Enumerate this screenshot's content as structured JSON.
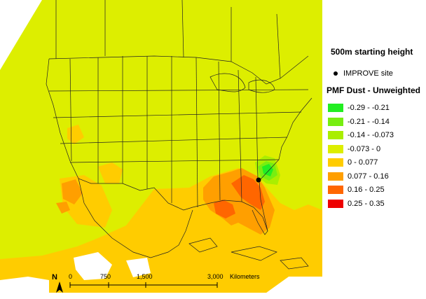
{
  "title": "500m starting height",
  "site_legend_label": "IMPROVE site",
  "layer_title": "PMF Dust - Unweighted",
  "classes": [
    {
      "label": "-0.29 - -0.21",
      "color": "#22ee22"
    },
    {
      "label": "-0.21 - -0.14",
      "color": "#77ee11"
    },
    {
      "label": "-0.14 - -0.073",
      "color": "#aaee00"
    },
    {
      "label": "-0.073 - 0",
      "color": "#ddee00"
    },
    {
      "label": "0 - 0.077",
      "color": "#ffcc00"
    },
    {
      "label": "0.077 - 0.16",
      "color": "#ff9f00"
    },
    {
      "label": "0.16 - 0.25",
      "color": "#ff6600"
    },
    {
      "label": "0.25 - 0.35",
      "color": "#ee0000"
    }
  ],
  "scale_bar": {
    "ticks": [
      "0",
      "750",
      "1,500",
      "3,000"
    ],
    "unit": "Kilometers"
  },
  "north_label": "N"
}
